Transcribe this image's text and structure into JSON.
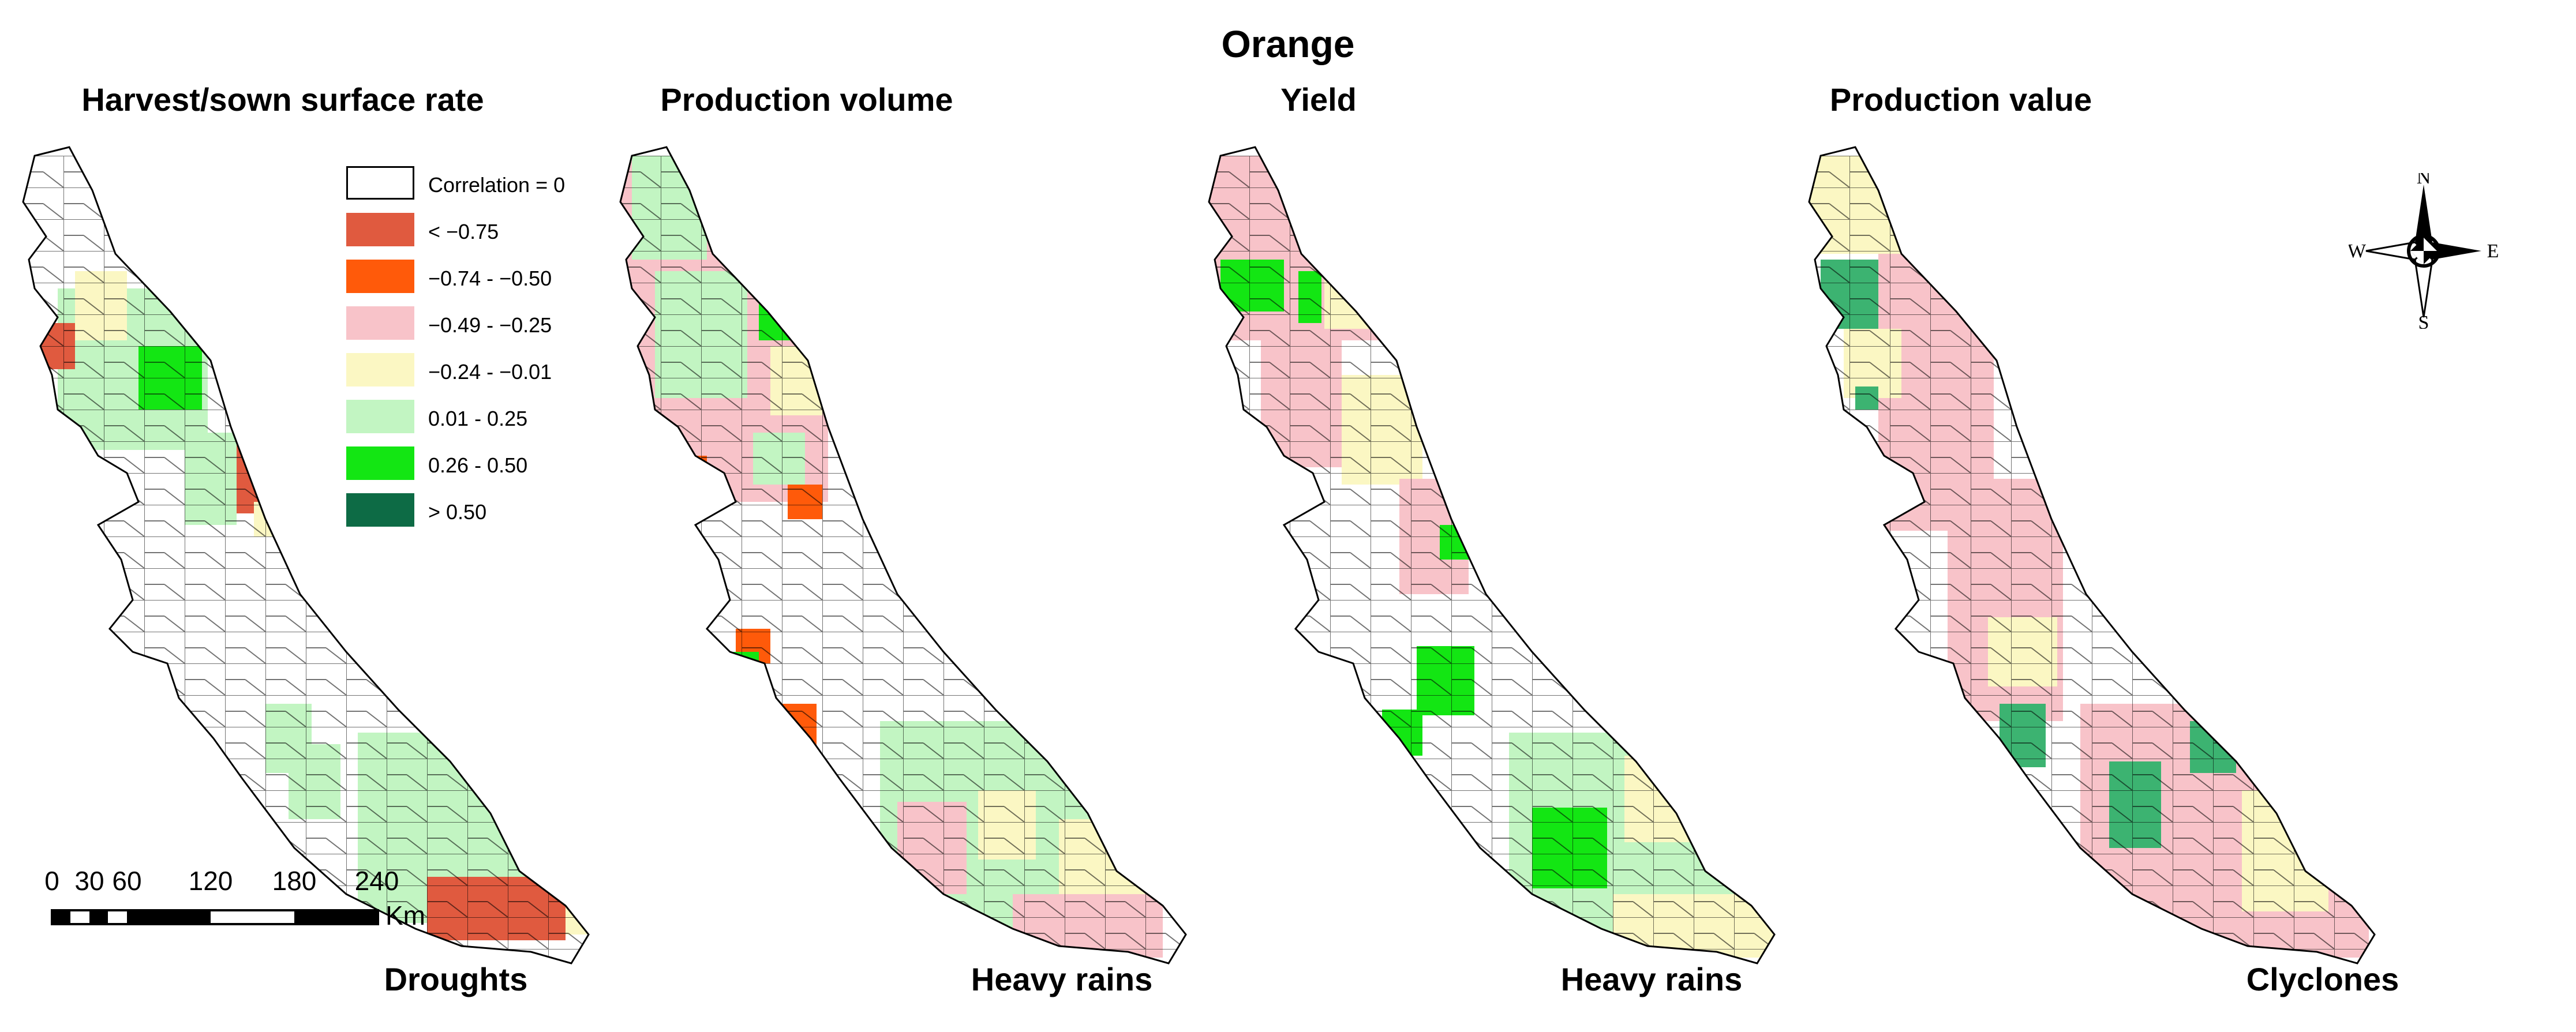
{
  "figure_title": "Orange",
  "panels": [
    {
      "title": "Harvest/sown surface rate",
      "caption": "Droughts"
    },
    {
      "title": "Production volume",
      "caption": "Heavy rains"
    },
    {
      "title": "Yield",
      "caption": "Heavy rains"
    },
    {
      "title": "Production value",
      "caption": "Clyclones"
    }
  ],
  "legend": {
    "items": [
      {
        "label": "Correlation = 0",
        "color": "#ffffff"
      },
      {
        "label": "< −0.75",
        "color": "#e05a3f"
      },
      {
        "label": "−0.74 - −0.50",
        "color": "#ff5a0a"
      },
      {
        "label": "−0.49 - −0.25",
        "color": "#f8c3c9"
      },
      {
        "label": "−0.24 - −0.01",
        "color": "#fbf7c3"
      },
      {
        "label": "0.01 - 0.25",
        "color": "#c2f5c2"
      },
      {
        "label": "0.26 - 0.50",
        "color": "#13e613"
      },
      {
        "label": "> 0.50",
        "color": "#0d6b45"
      }
    ]
  },
  "north_arrow": {
    "n": "N",
    "s": "S",
    "e": "E",
    "w": "W"
  },
  "scale_bar": {
    "ticks": [
      "0",
      "30",
      "60",
      "120",
      "180",
      "240"
    ],
    "unit": "Km"
  }
}
